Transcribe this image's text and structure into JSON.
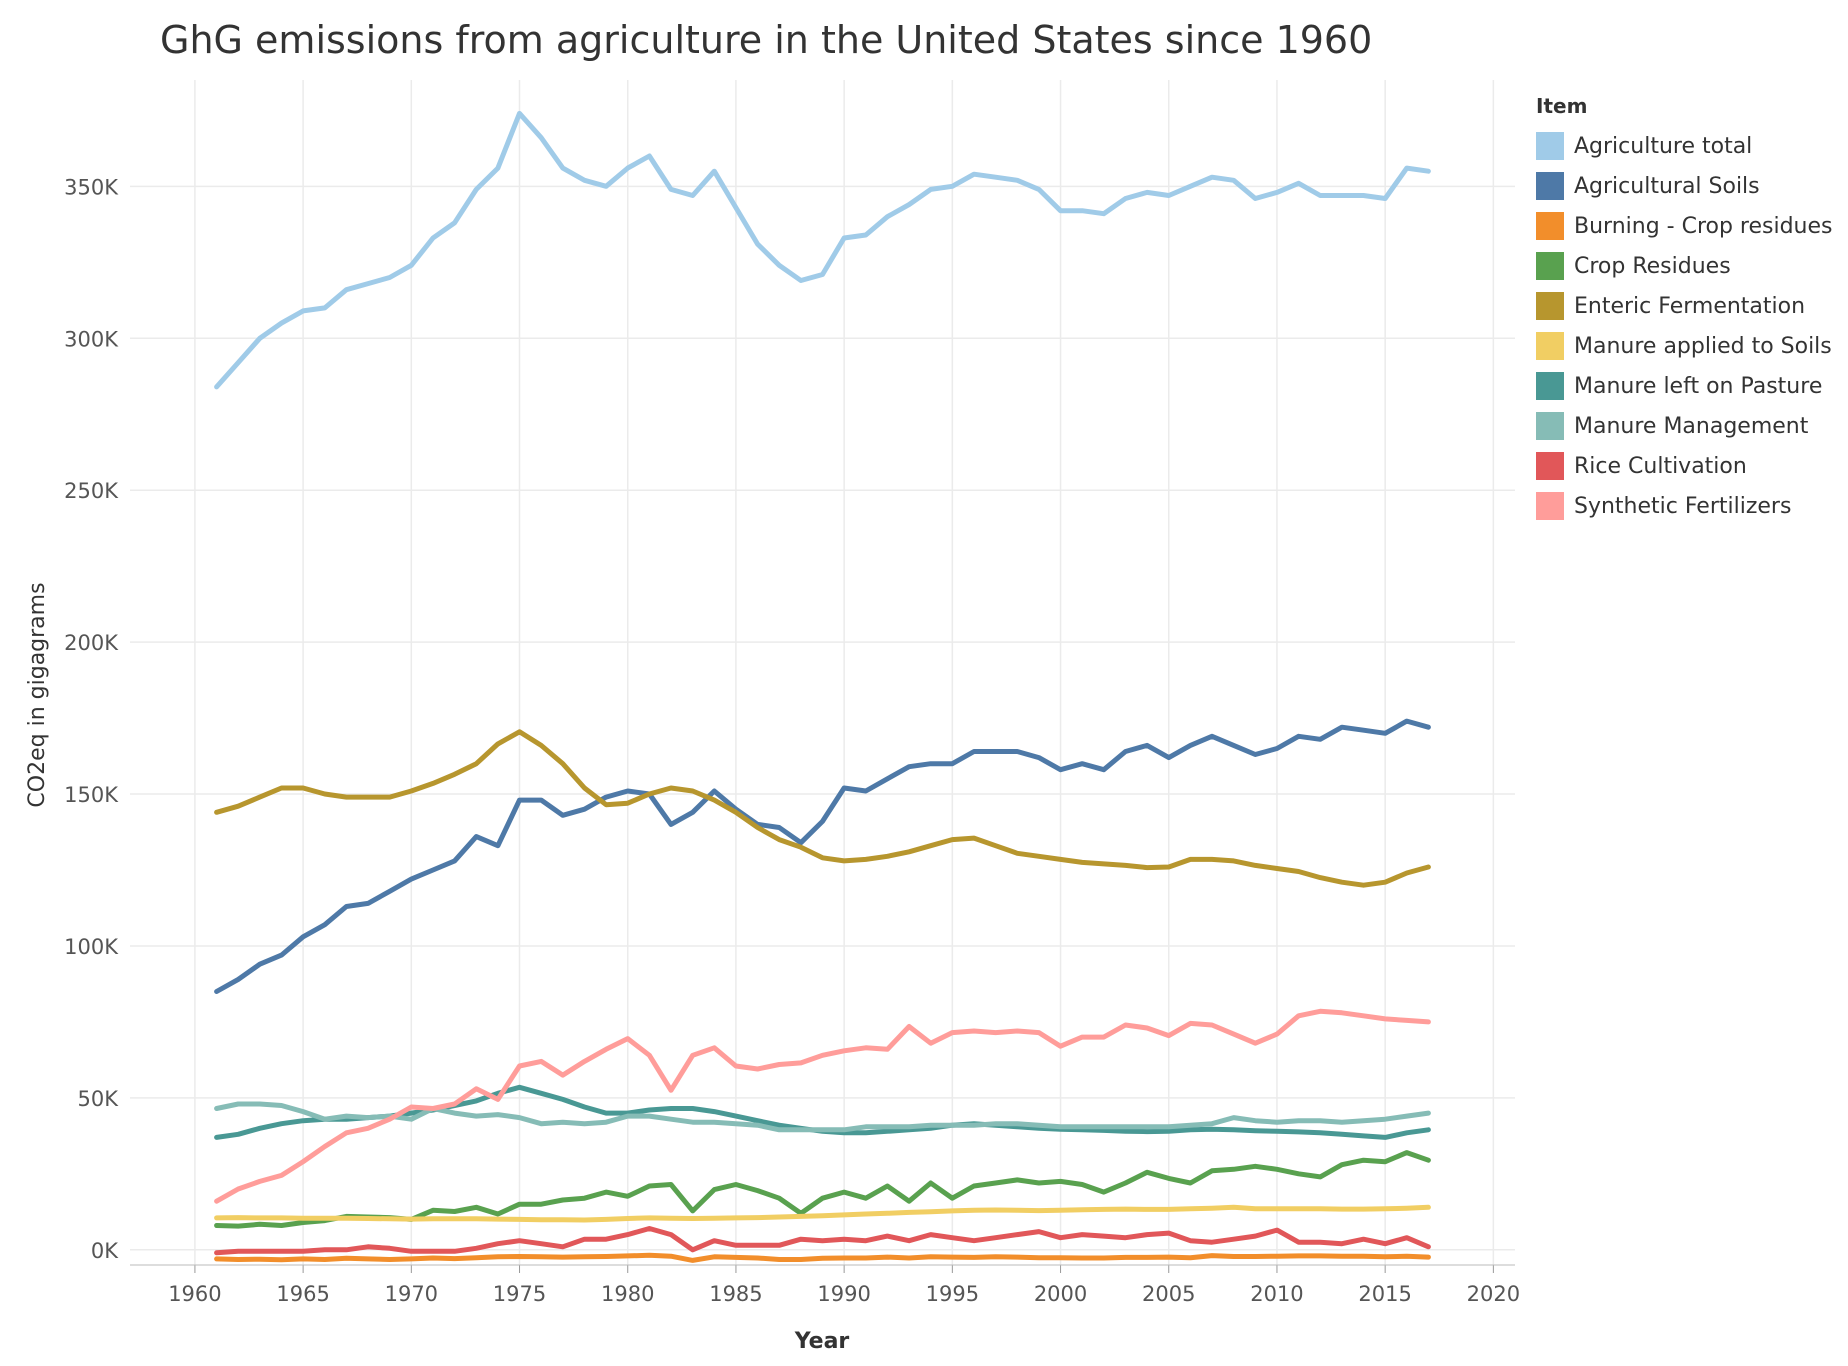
{
  "chart_data": {
    "type": "line",
    "title": "GhG emissions from agriculture in the United States since 1960",
    "xlabel": "Year",
    "ylabel": "CO2eq in gigagrams",
    "xlim": [
      1957,
      2021
    ],
    "ylim": [
      -5000,
      385000
    ],
    "x_ticks": [
      1960,
      1965,
      1970,
      1975,
      1980,
      1985,
      1990,
      1995,
      2000,
      2005,
      2010,
      2015,
      2020
    ],
    "y_ticks": [
      0,
      50000,
      100000,
      150000,
      200000,
      250000,
      300000,
      350000
    ],
    "y_tick_labels": [
      "0K",
      "50K",
      "100K",
      "150K",
      "200K",
      "250K",
      "300K",
      "350K"
    ],
    "grid": true,
    "legend_title": "Item",
    "legend_position": "right",
    "x": [
      1961,
      1962,
      1963,
      1964,
      1965,
      1966,
      1967,
      1968,
      1969,
      1970,
      1971,
      1972,
      1973,
      1974,
      1975,
      1976,
      1977,
      1978,
      1979,
      1980,
      1981,
      1982,
      1983,
      1984,
      1985,
      1986,
      1987,
      1988,
      1989,
      1990,
      1991,
      1992,
      1993,
      1994,
      1995,
      1996,
      1997,
      1998,
      1999,
      2000,
      2001,
      2002,
      2003,
      2004,
      2005,
      2006,
      2007,
      2008,
      2009,
      2010,
      2011,
      2012,
      2013,
      2014,
      2015,
      2016,
      2017
    ],
    "series": [
      {
        "name": "Agriculture total",
        "color": "#a0cbe8",
        "values": [
          284000,
          292000,
          300000,
          305000,
          309000,
          310000,
          316000,
          318000,
          320000,
          324000,
          333000,
          338000,
          349000,
          356000,
          374000,
          366000,
          356000,
          352000,
          350000,
          356000,
          360000,
          349000,
          347000,
          355000,
          343000,
          331000,
          324000,
          319000,
          321000,
          333000,
          334000,
          340000,
          344000,
          349000,
          350000,
          354000,
          353000,
          352000,
          349000,
          342000,
          342000,
          341000,
          346000,
          348000,
          347000,
          350000,
          353000,
          352000,
          346000,
          348000,
          351000,
          347000,
          347000,
          347000,
          346000,
          356000,
          355000
        ]
      },
      {
        "name": "Agricultural Soils",
        "color": "#4e79a7",
        "values": [
          85000,
          89000,
          94000,
          97000,
          103000,
          107000,
          113000,
          114000,
          118000,
          122000,
          125000,
          128000,
          136000,
          133000,
          148000,
          148000,
          143000,
          145000,
          149000,
          151000,
          150000,
          140000,
          144000,
          151000,
          145000,
          140000,
          139000,
          134000,
          141000,
          152000,
          151000,
          155000,
          159000,
          160000,
          160000,
          164000,
          164000,
          164000,
          162000,
          158000,
          160000,
          158000,
          164000,
          166000,
          162000,
          166000,
          169000,
          166000,
          163000,
          165000,
          169000,
          168000,
          172000,
          171000,
          170000,
          174000,
          172000
        ]
      },
      {
        "name": "Burning - Crop residues",
        "color": "#f28e2b",
        "values": [
          -3000,
          -3200,
          -3100,
          -3300,
          -3000,
          -3200,
          -2800,
          -3000,
          -3200,
          -3000,
          -2700,
          -2900,
          -2600,
          -2300,
          -2200,
          -2300,
          -2400,
          -2300,
          -2200,
          -2000,
          -1800,
          -2100,
          -3500,
          -2300,
          -2500,
          -2700,
          -3200,
          -3200,
          -2800,
          -2700,
          -2700,
          -2400,
          -2700,
          -2300,
          -2400,
          -2500,
          -2300,
          -2400,
          -2600,
          -2600,
          -2700,
          -2700,
          -2500,
          -2500,
          -2400,
          -2600,
          -1900,
          -2200,
          -2200,
          -2100,
          -2000,
          -2000,
          -2100,
          -2100,
          -2300,
          -2100,
          -2400
        ]
      },
      {
        "name": "Crop Residues",
        "color": "#59a14f",
        "values": [
          8000,
          7800,
          8400,
          8000,
          9000,
          9600,
          11000,
          10800,
          10600,
          10000,
          13000,
          12600,
          14000,
          11800,
          15000,
          15000,
          16400,
          17000,
          19000,
          17600,
          21000,
          21500,
          12800,
          19800,
          21500,
          19500,
          17000,
          12000,
          17000,
          19000,
          17000,
          21000,
          16000,
          22000,
          17000,
          21000,
          22000,
          23000,
          22000,
          22500,
          21500,
          19000,
          22000,
          25500,
          23500,
          22000,
          26000,
          26500,
          27500,
          26500,
          25000,
          24000,
          28000,
          29500,
          29000,
          32000,
          29500
        ]
      },
      {
        "name": "Enteric Fermentation",
        "color": "#b7962e",
        "values": [
          144000,
          146000,
          149000,
          152000,
          152000,
          150000,
          149000,
          149000,
          149000,
          151000,
          153500,
          156500,
          160000,
          166500,
          170500,
          166000,
          160000,
          152000,
          146500,
          147000,
          150000,
          152000,
          151000,
          148000,
          144000,
          139000,
          135000,
          132500,
          129000,
          128000,
          128500,
          129500,
          131000,
          133000,
          135000,
          135500,
          133000,
          130500,
          129500,
          128500,
          127500,
          127000,
          126500,
          125800,
          126000,
          128500,
          128500,
          128000,
          126500,
          125500,
          124500,
          122500,
          121000,
          120000,
          121000,
          124000,
          126000
        ]
      },
      {
        "name": "Manure applied to Soils",
        "color": "#f1ce63",
        "values": [
          10500,
          10600,
          10500,
          10500,
          10400,
          10400,
          10400,
          10300,
          10200,
          10100,
          10200,
          10200,
          10200,
          10100,
          10000,
          9900,
          9900,
          9800,
          10000,
          10300,
          10500,
          10400,
          10300,
          10400,
          10500,
          10600,
          10800,
          11000,
          11200,
          11500,
          11800,
          12000,
          12300,
          12500,
          12800,
          13000,
          13100,
          13000,
          12900,
          13000,
          13200,
          13300,
          13400,
          13300,
          13300,
          13500,
          13700,
          14000,
          13500,
          13500,
          13500,
          13500,
          13400,
          13400,
          13500,
          13700,
          14000
        ]
      },
      {
        "name": "Manure left on Pasture",
        "color": "#499894",
        "values": [
          37000,
          38000,
          40000,
          41500,
          42500,
          43000,
          43000,
          43500,
          44000,
          45000,
          46000,
          47500,
          49000,
          51500,
          53500,
          51500,
          49500,
          47000,
          45000,
          45000,
          46000,
          46500,
          46500,
          45500,
          44000,
          42500,
          41000,
          40000,
          39000,
          38500,
          38500,
          39000,
          39500,
          40000,
          41000,
          41500,
          41000,
          40500,
          40000,
          39700,
          39500,
          39300,
          39000,
          38900,
          39000,
          39500,
          39700,
          39500,
          39200,
          39000,
          38800,
          38500,
          38000,
          37500,
          37000,
          38500,
          39500
        ]
      },
      {
        "name": "Manure Management",
        "color": "#86bcb6",
        "values": [
          46500,
          48000,
          48000,
          47500,
          45500,
          43000,
          44000,
          43500,
          44000,
          43000,
          46500,
          45000,
          44000,
          44500,
          43500,
          41500,
          42000,
          41500,
          42000,
          44000,
          44000,
          43000,
          42000,
          42000,
          41500,
          41000,
          39500,
          39500,
          39500,
          39500,
          40500,
          40500,
          40500,
          41000,
          41000,
          41000,
          41500,
          41500,
          41000,
          40500,
          40500,
          40500,
          40500,
          40500,
          40500,
          41000,
          41500,
          43500,
          42500,
          42000,
          42500,
          42500,
          42000,
          42500,
          43000,
          44000,
          45000
        ]
      },
      {
        "name": "Rice Cultivation",
        "color": "#e15759",
        "values": [
          -1000,
          -500,
          -500,
          -500,
          -500,
          0,
          0,
          1000,
          500,
          -500,
          -500,
          -500,
          500,
          2000,
          3000,
          2000,
          1000,
          3500,
          3500,
          5000,
          7000,
          5000,
          0,
          3000,
          1500,
          1500,
          1500,
          3500,
          3000,
          3500,
          3000,
          4500,
          3000,
          5000,
          4000,
          3000,
          4000,
          5000,
          6000,
          4000,
          5000,
          4500,
          4000,
          5000,
          5500,
          3000,
          2500,
          3500,
          4500,
          6500,
          2500,
          2500,
          2000,
          3500,
          2000,
          4000,
          1000
        ]
      },
      {
        "name": "Synthetic Fertilizers",
        "color": "#ff9d9a",
        "values": [
          16000,
          20000,
          22500,
          24500,
          29000,
          34000,
          38500,
          40000,
          43000,
          47000,
          46500,
          48000,
          53000,
          49500,
          60500,
          62000,
          57500,
          62000,
          66000,
          69500,
          64000,
          52500,
          64000,
          66500,
          60500,
          59500,
          61000,
          61500,
          64000,
          65500,
          66500,
          66000,
          73500,
          68000,
          71500,
          72000,
          71500,
          72000,
          71500,
          67000,
          70000,
          70000,
          74000,
          73000,
          70500,
          74500,
          74000,
          71000,
          68000,
          71000,
          77000,
          78500,
          78000,
          77000,
          76000,
          75500,
          75000
        ]
      }
    ]
  }
}
